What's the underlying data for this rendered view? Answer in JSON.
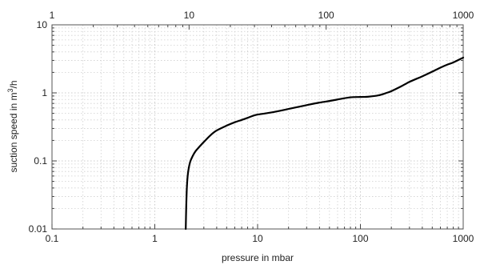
{
  "chart_data": {
    "type": "line",
    "title": "",
    "xlabel": "pressure in mbar",
    "ylabel_prefix": "suction speed in m",
    "ylabel_superscript": "3",
    "ylabel_suffix": "/h",
    "x_scale": "log",
    "y_scale": "log",
    "xlim": [
      0.1,
      1000
    ],
    "ylim": [
      0.01,
      10
    ],
    "top_axis": {
      "xlim": [
        1,
        1000
      ],
      "scale": "log",
      "tick_values": [
        1,
        10,
        100,
        1000
      ],
      "tick_labels": [
        "1",
        "10",
        "100",
        "1000"
      ]
    },
    "x_tick_values": [
      0.1,
      1,
      10,
      100,
      1000
    ],
    "x_tick_labels": [
      "0.1",
      "1",
      "10",
      "100",
      "1000"
    ],
    "y_tick_values": [
      0.01,
      0.1,
      1,
      10
    ],
    "y_tick_labels": [
      "0.01",
      "0.1",
      "1",
      "10"
    ],
    "grid": true,
    "grid_style": "dotted, major and minor",
    "colors": {
      "line": "#000000",
      "grid": "#cfcfcf",
      "frame": "#555555"
    },
    "series": [
      {
        "x": [
          2.0,
          2.02,
          2.05,
          2.1,
          2.2,
          2.35,
          2.5,
          2.7,
          3.0,
          3.5,
          4.0,
          5.0,
          6.0,
          7.0,
          8.0,
          9.0,
          10,
          12,
          15,
          20,
          30,
          40,
          50,
          60,
          80,
          100,
          120,
          150,
          180,
          200,
          250,
          300,
          400,
          500,
          600,
          700,
          800,
          1000
        ],
        "y": [
          0.01,
          0.02,
          0.04,
          0.065,
          0.095,
          0.12,
          0.14,
          0.16,
          0.19,
          0.24,
          0.28,
          0.33,
          0.37,
          0.4,
          0.43,
          0.46,
          0.48,
          0.5,
          0.53,
          0.58,
          0.66,
          0.72,
          0.76,
          0.8,
          0.86,
          0.87,
          0.88,
          0.92,
          1.0,
          1.06,
          1.25,
          1.45,
          1.75,
          2.05,
          2.35,
          2.6,
          2.8,
          3.3
        ]
      }
    ]
  }
}
